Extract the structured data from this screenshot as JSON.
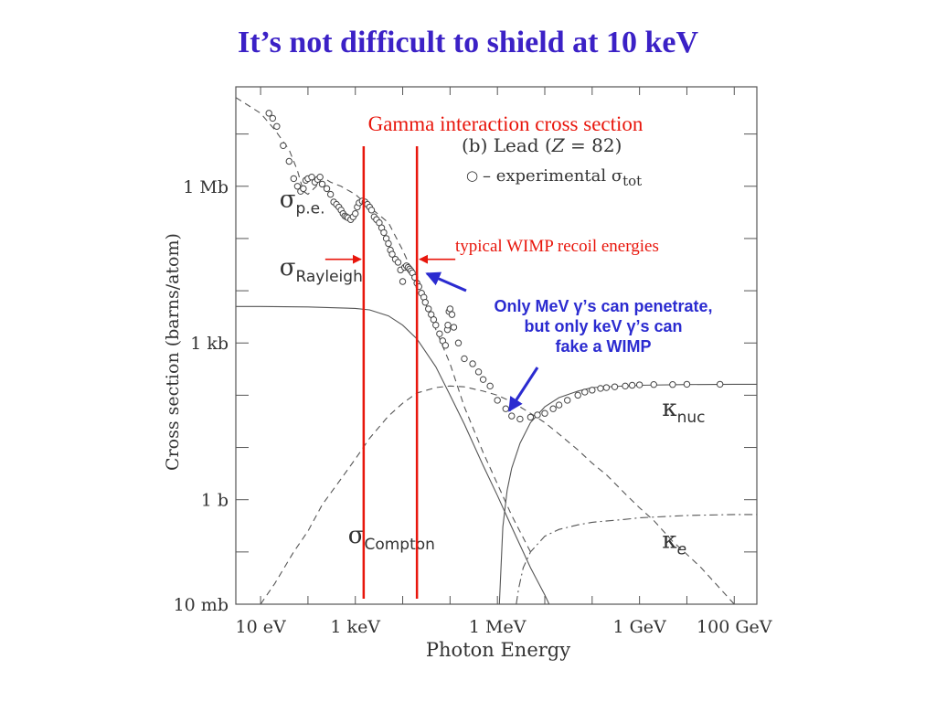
{
  "slide": {
    "title": "It’s not difficult to shield at 10 keV",
    "title_color": "#3b21c6",
    "annotation_color": "#e8160c",
    "callout_color": "#2b2bd0"
  },
  "annotations": {
    "gamma_heading": "Gamma interaction cross section",
    "wimp_label": "typical WIMP recoil energies",
    "callout_lines": [
      "Only MeV γ’s can penetrate,",
      "but only keV γ’s can",
      "fake a WIMP"
    ]
  },
  "chart_data": {
    "type": "line",
    "title": "(b) Lead (Z = 82)",
    "xlabel": "Photon Energy",
    "ylabel": "Cross section  (barns/atom)",
    "x_scale": "log",
    "y_scale": "log",
    "x_unit": "eV",
    "y_unit": "barns/atom",
    "xlim": [
      3,
      300000000000
    ],
    "ylim": [
      0.01,
      80000000
    ],
    "x_ticks": [
      {
        "value": 10,
        "label": "10 eV"
      },
      {
        "value": 1000,
        "label": "1 keV"
      },
      {
        "value": 1000000,
        "label": "1 MeV"
      },
      {
        "value": 1000000000,
        "label": "1 GeV"
      },
      {
        "value": 100000000000,
        "label": "100 GeV"
      }
    ],
    "y_ticks": [
      {
        "value": 0.01,
        "label": "10 mb"
      },
      {
        "value": 1,
        "label": "1 b"
      },
      {
        "value": 1000,
        "label": "1 kb"
      },
      {
        "value": 1000000,
        "label": "1 Mb"
      }
    ],
    "legend": {
      "marker": "○",
      "label": "– experimental σ",
      "subscript": "tot"
    },
    "series": [
      {
        "name": "σp.e.",
        "symbol": "σ",
        "subscript": "p.e.",
        "style": "dashed",
        "label_at": [
          25,
          400000
        ],
        "x": [
          3,
          10,
          20,
          40,
          60,
          80,
          100,
          150,
          200,
          300,
          500,
          1000,
          2000,
          5000,
          10000,
          20000,
          50000,
          100000,
          200000,
          500000,
          1000000,
          2000000,
          5000000
        ],
        "y": [
          50000000,
          25000000,
          12000000,
          5000000,
          2000000,
          800000,
          700000,
          1000000,
          1500000,
          1200000,
          1000000,
          700000,
          400000,
          200000,
          60000,
          15000,
          1800,
          400,
          60,
          8,
          2,
          0.5,
          0.1
        ]
      },
      {
        "name": "σRayleigh",
        "symbol": "σ",
        "subscript": "Rayleigh",
        "style": "solid",
        "label_at": [
          25,
          20000
        ],
        "x": [
          3,
          10,
          100,
          1000,
          2000,
          5000,
          10000,
          20000,
          50000,
          100000,
          200000,
          500000,
          1000000,
          2000000,
          5000000,
          10000000,
          20000000
        ],
        "y": [
          5000,
          5000,
          4900,
          4600,
          4300,
          3300,
          2200,
          1200,
          350,
          100,
          28,
          4.5,
          1.2,
          0.3,
          0.05,
          0.015,
          0.004
        ]
      },
      {
        "name": "σCompton",
        "symbol": "σ",
        "subscript": "Compton",
        "style": "dashed",
        "label_at": [
          700,
          0.15
        ],
        "x": [
          10,
          20,
          50,
          100,
          200,
          500,
          1000,
          2000,
          5000,
          10000,
          20000,
          50000,
          100000,
          200000,
          500000,
          1000000,
          2000000,
          5000000,
          10000000,
          20000000,
          50000000,
          100000000,
          200000000,
          500000000,
          1000000000,
          2000000000,
          5000000000,
          10000000000,
          20000000000,
          50000000000,
          100000000000
        ],
        "y": [
          0.01,
          0.025,
          0.1,
          0.25,
          0.8,
          2.5,
          6,
          15,
          40,
          70,
          110,
          140,
          150,
          145,
          120,
          100,
          75,
          45,
          30,
          18,
          9,
          5,
          3,
          1.3,
          0.7,
          0.4,
          0.16,
          0.09,
          0.05,
          0.02,
          0.01
        ]
      },
      {
        "name": "κnuc",
        "symbol": "κ",
        "subscript": "nuc",
        "style": "solid",
        "label_at": [
          3000000000,
          40
        ],
        "x": [
          1100000,
          1300000,
          1600000,
          2000000,
          3000000,
          5000000,
          10000000,
          20000000,
          50000000,
          100000000,
          1000000000,
          10000000000,
          100000000000,
          300000000000
        ],
        "y": [
          0.01,
          0.3,
          1.5,
          4,
          12,
          30,
          60,
          90,
          120,
          140,
          155,
          160,
          162,
          162
        ]
      },
      {
        "name": "κe",
        "symbol": "κ",
        "subscript": "e",
        "style": "dash-dot",
        "label_at": [
          3000000000,
          0.12
        ],
        "x": [
          2500000,
          2800000,
          3500000,
          5000000,
          10000000,
          20000000,
          50000000,
          100000000,
          500000000,
          1000000000,
          10000000000,
          100000000000,
          300000000000
        ],
        "y": [
          0.01,
          0.02,
          0.05,
          0.1,
          0.2,
          0.27,
          0.33,
          0.37,
          0.42,
          0.45,
          0.5,
          0.52,
          0.52
        ]
      },
      {
        "name": "experimental σtot",
        "style": "markers",
        "x": [
          15,
          18,
          22,
          30,
          40,
          50,
          60,
          70,
          80,
          90,
          100,
          120,
          140,
          160,
          180,
          200,
          250,
          300,
          350,
          400,
          450,
          500,
          550,
          600,
          650,
          700,
          800,
          900,
          1000,
          1100,
          1200,
          1400,
          1600,
          1800,
          2000,
          2200,
          2500,
          2800,
          3200,
          3600,
          4000,
          4500,
          5000,
          5500,
          6000,
          7000,
          8000,
          9000,
          10000,
          11000,
          12000,
          13000,
          14000,
          15000,
          16000,
          18000,
          20000,
          22000,
          25000,
          28000,
          30000,
          35000,
          40000,
          45000,
          50000,
          60000,
          70000,
          80000,
          88000,
          90000,
          95000,
          100000,
          110000,
          120000,
          150000,
          200000,
          300000,
          400000,
          500000,
          700000,
          1000000,
          1500000,
          2000000,
          3000000,
          5000000,
          7000000,
          10000000,
          15000000,
          20000000,
          30000000,
          50000000,
          70000000,
          100000000,
          150000000,
          200000000,
          300000000,
          500000000,
          700000000,
          1000000000,
          2000000000,
          5000000000,
          10000000000,
          50000000000
        ],
        "y": [
          25000000,
          20000000,
          14000000,
          6000000,
          3000000,
          1400000,
          1000000,
          800000,
          900000,
          1300000,
          1400000,
          1500000,
          1200000,
          1350000,
          1500000,
          1100000,
          900000,
          700000,
          500000,
          450000,
          400000,
          350000,
          300000,
          270000,
          260000,
          250000,
          230000,
          260000,
          300000,
          400000,
          480000,
          520000,
          500000,
          450000,
          400000,
          350000,
          260000,
          230000,
          200000,
          160000,
          130000,
          100000,
          80000,
          60000,
          50000,
          40000,
          35000,
          25000,
          15000,
          28000,
          30000,
          28000,
          26000,
          24000,
          22000,
          18000,
          14000,
          12000,
          9000,
          7500,
          6000,
          4500,
          3500,
          2800,
          2200,
          1500,
          1100,
          900,
          1800,
          2200,
          4000,
          4500,
          3500,
          2000,
          1000,
          500,
          400,
          280,
          200,
          150,
          80,
          55,
          40,
          35,
          38,
          42,
          45,
          55,
          65,
          80,
          100,
          115,
          125,
          135,
          140,
          145,
          150,
          155,
          158,
          160,
          160,
          162,
          162
        ]
      }
    ],
    "markers": {
      "vertical_lines": [
        1500,
        20000
      ],
      "wimp_range": [
        1500,
        20000
      ],
      "wimp_arrow_y": 40000,
      "callout_arrow_targets": [
        {
          "x": 25000,
          "y": 25000
        },
        {
          "x": 1500000,
          "y": 40
        }
      ]
    }
  }
}
